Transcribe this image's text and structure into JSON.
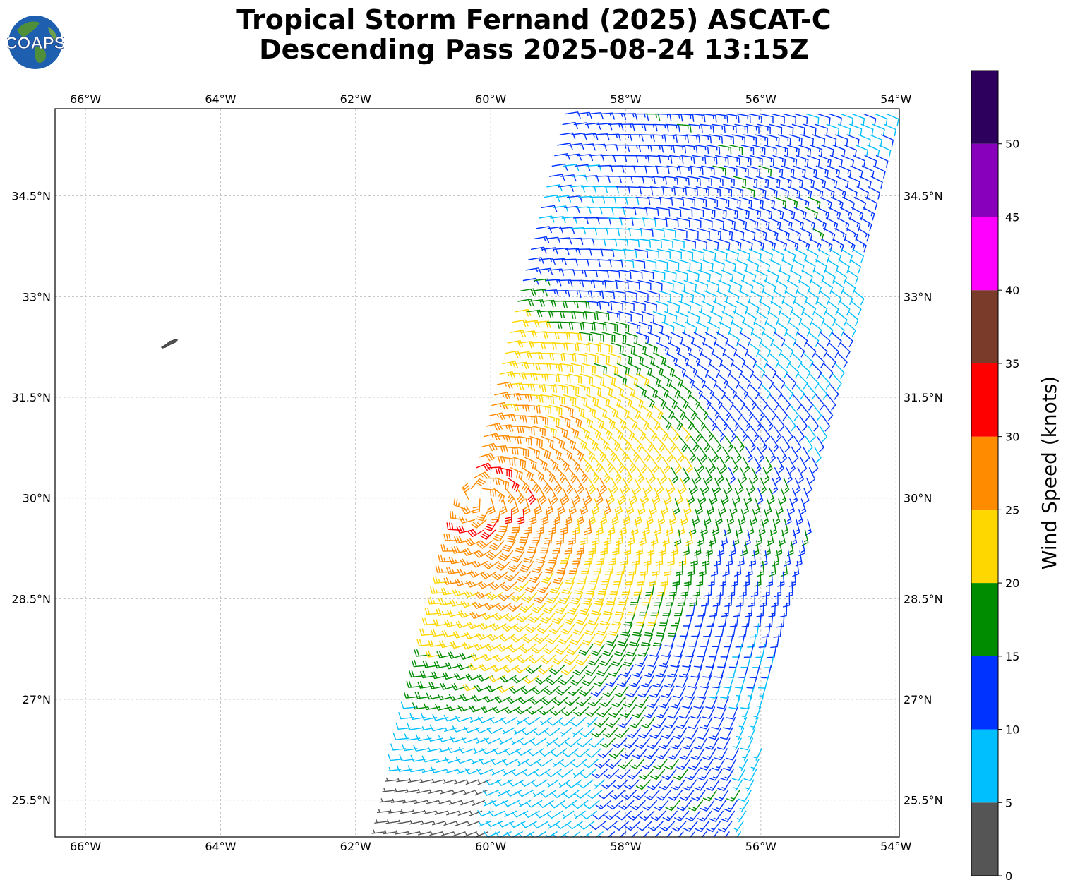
{
  "title": {
    "line1": "Tropical Storm Fernand (2025) ASCAT-C",
    "line2": "Descending Pass 2025-08-24 13:15Z"
  },
  "logo": {
    "text": "COAPS",
    "icon": "globe-icon"
  },
  "map": {
    "lon_ticks": [
      "66°W",
      "64°W",
      "62°W",
      "60°W",
      "58°W",
      "56°W",
      "54°W"
    ],
    "lat_ticks": [
      "34.5°N",
      "33°N",
      "31.5°N",
      "30°N",
      "28.5°N",
      "27°N",
      "25.5°N"
    ],
    "lon_range": [
      -66.45,
      -53.95
    ],
    "lat_range": [
      24.95,
      35.8
    ],
    "grid": true,
    "land": "Bermuda"
  },
  "colorbar": {
    "label": "Wind Speed (knots)",
    "tick_labels": [
      "0",
      "5",
      "10",
      "15",
      "20",
      "25",
      "30",
      "35",
      "40",
      "45",
      "50"
    ],
    "bounds": [
      0,
      5,
      10,
      15,
      20,
      25,
      30,
      35,
      40,
      45,
      50,
      55
    ],
    "colors": [
      "#555555",
      "#00bfff",
      "#0033ff",
      "#008c00",
      "#ffd700",
      "#ff8c00",
      "#ff0000",
      "#7a3b2a",
      "#ff00ff",
      "#8800bb",
      "#2e005e"
    ]
  },
  "wind_field": {
    "type": "wind barbs",
    "units": "knots",
    "center": {
      "lon": -60.2,
      "lat": 30.0
    }
  }
}
